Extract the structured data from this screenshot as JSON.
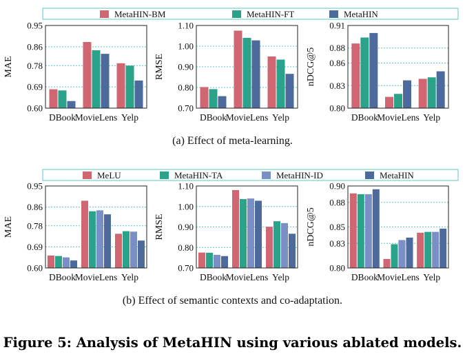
{
  "figure_caption": "Figure 5: Analysis of MetaHIN using various ablated models.",
  "colors": {
    "MetaHIN-BM": "#cf6671",
    "MetaHIN-FT": "#2aa38a",
    "MetaHIN": "#4d6a9c",
    "MeLU": "#cf6671",
    "MetaHIN-TA": "#2aa38a",
    "MetaHIN-ID": "#7b8fc7",
    "gridline": "#5ec8c0",
    "legend_border": "#5ec8c0"
  },
  "chart_data": [
    {
      "group": "a",
      "caption": "(a)  Effect of meta-learning.",
      "legend": [
        "MetaHIN-BM",
        "MetaHIN-FT",
        "MetaHIN"
      ],
      "panels": [
        {
          "type": "bar",
          "ylabel": "MAE",
          "ylim": [
            0.6,
            0.95
          ],
          "yticks": [
            0.6,
            0.69,
            0.78,
            0.86,
            0.95
          ],
          "ytick_labels": [
            "0.60",
            "0.69",
            "0.78",
            "0.86",
            "0.95"
          ],
          "categories": [
            "DBook",
            "MovieLens",
            "Yelp"
          ],
          "series": [
            {
              "name": "MetaHIN-BM",
              "values": [
                0.68,
                0.88,
                0.79
              ]
            },
            {
              "name": "MetaHIN-FT",
              "values": [
                0.675,
                0.845,
                0.78
              ]
            },
            {
              "name": "MetaHIN",
              "values": [
                0.63,
                0.83,
                0.717
              ]
            }
          ]
        },
        {
          "type": "bar",
          "ylabel": "RMSE",
          "ylim": [
            0.7,
            1.1
          ],
          "yticks": [
            0.7,
            0.8,
            0.9,
            1.0,
            1.1
          ],
          "ytick_labels": [
            "0.70",
            "0.80",
            "0.90",
            "1.00",
            "1.10"
          ],
          "categories": [
            "DBook",
            "MovieLens",
            "Yelp"
          ],
          "series": [
            {
              "name": "MetaHIN-BM",
              "values": [
                0.802,
                1.075,
                0.95
              ]
            },
            {
              "name": "MetaHIN-FT",
              "values": [
                0.792,
                1.04,
                0.935
              ]
            },
            {
              "name": "MetaHIN",
              "values": [
                0.758,
                1.028,
                0.866
              ]
            }
          ]
        },
        {
          "type": "bar",
          "ylabel": "nDCG@5",
          "ylim": [
            0.8,
            0.91
          ],
          "yticks": [
            0.8,
            0.83,
            0.86,
            0.88,
            0.91
          ],
          "ytick_labels": [
            "0.80",
            "0.83",
            "0.86",
            "0.88",
            "0.91"
          ],
          "categories": [
            "DBook",
            "MovieLens",
            "Yelp"
          ],
          "series": [
            {
              "name": "MetaHIN-BM",
              "values": [
                0.886,
                0.815,
                0.839
              ]
            },
            {
              "name": "MetaHIN-FT",
              "values": [
                0.894,
                0.819,
                0.841
              ]
            },
            {
              "name": "MetaHIN",
              "values": [
                0.9,
                0.837,
                0.849
              ]
            }
          ]
        }
      ]
    },
    {
      "group": "b",
      "caption": "(b)  Effect of semantic contexts and co-adaptation.",
      "legend": [
        "MeLU",
        "MetaHIN-TA",
        "MetaHIN-ID",
        "MetaHIN"
      ],
      "panels": [
        {
          "type": "bar",
          "ylabel": "MAE",
          "ylim": [
            0.6,
            0.95
          ],
          "yticks": [
            0.6,
            0.69,
            0.78,
            0.86,
            0.95
          ],
          "ytick_labels": [
            "0.60",
            "0.69",
            "0.78",
            "0.86",
            "0.95"
          ],
          "categories": [
            "DBook",
            "MovieLens",
            "Yelp"
          ],
          "series": [
            {
              "name": "MeLU",
              "values": [
                0.653,
                0.887,
                0.746
              ]
            },
            {
              "name": "MetaHIN-TA",
              "values": [
                0.651,
                0.842,
                0.757
              ]
            },
            {
              "name": "MetaHIN-ID",
              "values": [
                0.645,
                0.846,
                0.755
              ]
            },
            {
              "name": "MetaHIN",
              "values": [
                0.632,
                0.829,
                0.717
              ]
            }
          ]
        },
        {
          "type": "bar",
          "ylabel": "RMSE",
          "ylim": [
            0.7,
            1.1
          ],
          "yticks": [
            0.7,
            0.8,
            0.9,
            1.0,
            1.1
          ],
          "ytick_labels": [
            "0.70",
            "0.80",
            "0.90",
            "1.00",
            "1.10"
          ],
          "categories": [
            "DBook",
            "MovieLens",
            "Yelp"
          ],
          "series": [
            {
              "name": "MeLU",
              "values": [
                0.775,
                1.08,
                0.901
              ]
            },
            {
              "name": "MetaHIN-TA",
              "values": [
                0.774,
                1.036,
                0.928
              ]
            },
            {
              "name": "MetaHIN-ID",
              "values": [
                0.764,
                1.039,
                0.919
              ]
            },
            {
              "name": "MetaHIN",
              "values": [
                0.758,
                1.028,
                0.867
              ]
            }
          ]
        },
        {
          "type": "bar",
          "ylabel": "nDCG@5",
          "ylim": [
            0.8,
            0.9
          ],
          "yticks": [
            0.8,
            0.83,
            0.85,
            0.88,
            0.9
          ],
          "ytick_labels": [
            "0.80",
            "0.83",
            "0.85",
            "0.88",
            "0.90"
          ],
          "categories": [
            "DBook",
            "MovieLens",
            "Yelp"
          ],
          "series": [
            {
              "name": "MeLU",
              "values": [
                0.891,
                0.811,
                0.843
              ]
            },
            {
              "name": "MetaHIN-TA",
              "values": [
                0.89,
                0.829,
                0.844
              ]
            },
            {
              "name": "MetaHIN-ID",
              "values": [
                0.89,
                0.834,
                0.844
              ]
            },
            {
              "name": "MetaHIN",
              "values": [
                0.896,
                0.837,
                0.848
              ]
            }
          ]
        }
      ]
    }
  ]
}
